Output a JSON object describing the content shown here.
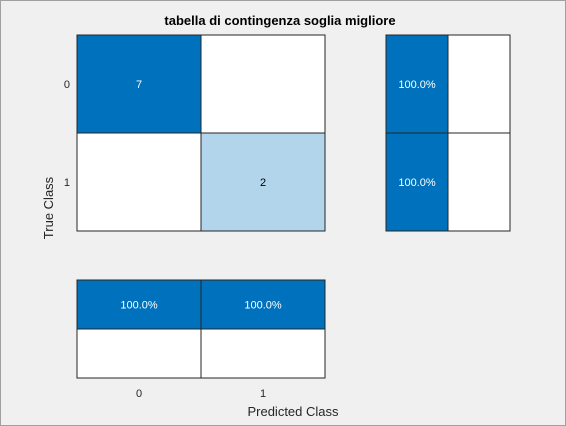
{
  "chart_data": {
    "type": "heatmap",
    "title": "tabella di contingenza soglia migliore",
    "xlabel": "Predicted Class",
    "ylabel": "True Class",
    "classes": [
      "0",
      "1"
    ],
    "matrix": [
      [
        7,
        0
      ],
      [
        0,
        2
      ]
    ],
    "row_summary": [
      [
        "100.0%",
        ""
      ],
      [
        "100.0%",
        ""
      ]
    ],
    "column_summary": [
      [
        "100.0%",
        "100.0%"
      ],
      [
        "",
        ""
      ]
    ],
    "colors": {
      "diag_strong": "#0072bd",
      "diag_light": "#b3d5eb",
      "empty": "#ffffff",
      "summary_fill": "#0072bd",
      "text_on_dark": "#ffffff",
      "text_on_light": "#000000"
    }
  }
}
